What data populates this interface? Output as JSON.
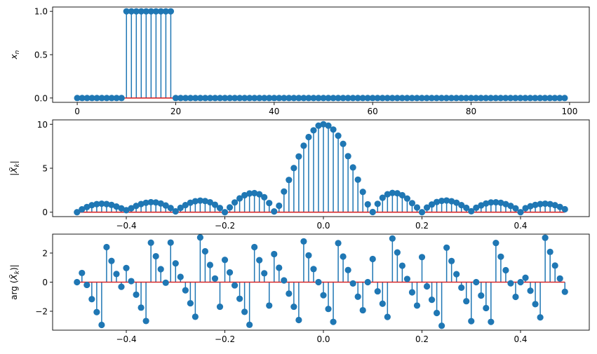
{
  "chart_data": [
    {
      "type": "stem",
      "ylabel": "x_n",
      "xlim": [
        -5,
        104
      ],
      "ylim": [
        -0.05,
        1.05
      ],
      "xticks": [
        0,
        20,
        40,
        60,
        80,
        100
      ],
      "xtick_labels": [
        "0",
        "20",
        "40",
        "60",
        "80",
        "100"
      ],
      "yticks": [
        0,
        0.5,
        1
      ],
      "ytick_labels": [
        "0.0",
        "0.5",
        "1.0"
      ],
      "x": [
        0,
        1,
        2,
        3,
        4,
        5,
        6,
        7,
        8,
        9,
        10,
        11,
        12,
        13,
        14,
        15,
        16,
        17,
        18,
        19,
        20,
        21,
        22,
        23,
        24,
        25,
        26,
        27,
        28,
        29,
        30,
        31,
        32,
        33,
        34,
        35,
        36,
        37,
        38,
        39,
        40,
        41,
        42,
        43,
        44,
        45,
        46,
        47,
        48,
        49,
        50,
        51,
        52,
        53,
        54,
        55,
        56,
        57,
        58,
        59,
        60,
        61,
        62,
        63,
        64,
        65,
        66,
        67,
        68,
        69,
        70,
        71,
        72,
        73,
        74,
        75,
        76,
        77,
        78,
        79,
        80,
        81,
        82,
        83,
        84,
        85,
        86,
        87,
        88,
        89,
        90,
        91,
        92,
        93,
        94,
        95,
        96,
        97,
        98,
        99
      ],
      "y": [
        0,
        0,
        0,
        0,
        0,
        0,
        0,
        0,
        0,
        0,
        1,
        1,
        1,
        1,
        1,
        1,
        1,
        1,
        1,
        1,
        0,
        0,
        0,
        0,
        0,
        0,
        0,
        0,
        0,
        0,
        0,
        0,
        0,
        0,
        0,
        0,
        0,
        0,
        0,
        0,
        0,
        0,
        0,
        0,
        0,
        0,
        0,
        0,
        0,
        0,
        0,
        0,
        0,
        0,
        0,
        0,
        0,
        0,
        0,
        0,
        0,
        0,
        0,
        0,
        0,
        0,
        0,
        0,
        0,
        0,
        0,
        0,
        0,
        0,
        0,
        0,
        0,
        0,
        0,
        0,
        0,
        0,
        0,
        0,
        0,
        0,
        0,
        0,
        0,
        0,
        0,
        0,
        0,
        0,
        0,
        0,
        0,
        0,
        0,
        0
      ]
    },
    {
      "type": "stem",
      "ylabel": "|X̃_k|",
      "xlim": [
        -0.5495,
        0.5395
      ],
      "ylim": [
        -0.5,
        10.5
      ],
      "xticks": [
        -0.4,
        -0.2,
        0,
        0.2,
        0.4
      ],
      "xtick_labels": [
        "−0.4",
        "−0.2",
        "0.0",
        "0.2",
        "0.4"
      ],
      "yticks": [
        0,
        5,
        10
      ],
      "ytick_labels": [
        "0",
        "5",
        "10"
      ],
      "x": [
        -0.5,
        -0.49,
        -0.48,
        -0.47,
        -0.46,
        -0.45,
        -0.44,
        -0.43,
        -0.42,
        -0.41,
        -0.4,
        -0.39,
        -0.38,
        -0.37,
        -0.36,
        -0.35,
        -0.34,
        -0.33,
        -0.32,
        -0.31,
        -0.3,
        -0.29,
        -0.28,
        -0.27,
        -0.26,
        -0.25,
        -0.24,
        -0.23,
        -0.22,
        -0.21,
        -0.2,
        -0.19,
        -0.18,
        -0.17,
        -0.16,
        -0.15,
        -0.14,
        -0.13,
        -0.12,
        -0.11,
        -0.1,
        -0.09,
        -0.08,
        -0.07,
        -0.06,
        -0.05,
        -0.04,
        -0.03,
        -0.02,
        -0.01,
        0.0,
        0.01,
        0.02,
        0.03,
        0.04,
        0.05,
        0.06,
        0.07,
        0.08,
        0.09,
        0.1,
        0.11,
        0.12,
        0.13,
        0.14,
        0.15,
        0.16,
        0.17,
        0.18,
        0.19,
        0.2,
        0.21,
        0.22,
        0.23,
        0.24,
        0.25,
        0.26,
        0.27,
        0.28,
        0.29,
        0.3,
        0.31,
        0.32,
        0.33,
        0.34,
        0.35,
        0.36,
        0.37,
        0.38,
        0.39,
        0.4,
        0.41,
        0.42,
        0.43,
        0.44,
        0.45,
        0.46,
        0.47,
        0.48,
        0.49
      ],
      "y": [
        0.0,
        0.33,
        0.59,
        0.8,
        0.92,
        0.97,
        0.93,
        0.83,
        0.65,
        0.44,
        0.23,
        0.45,
        0.72,
        0.93,
        1.07,
        1.14,
        1.11,
        0.99,
        0.77,
        0.48,
        0.1,
        0.5,
        0.81,
        1.08,
        1.25,
        1.32,
        1.27,
        1.13,
        0.85,
        0.48,
        0.0,
        0.55,
        1.11,
        1.57,
        1.93,
        2.13,
        2.17,
        2.04,
        1.7,
        1.04,
        0.09,
        0.74,
        2.35,
        3.67,
        5.02,
        6.34,
        7.56,
        8.55,
        9.31,
        9.84,
        10.0,
        9.84,
        9.4,
        8.7,
        7.77,
        6.37,
        5.09,
        3.7,
        2.31,
        0.9,
        0.02,
        0.95,
        1.64,
        2.04,
        2.19,
        2.15,
        1.93,
        1.55,
        1.03,
        0.54,
        0.0,
        0.53,
        0.88,
        1.16,
        1.29,
        1.33,
        1.25,
        1.08,
        0.81,
        0.5,
        0.11,
        0.51,
        0.78,
        0.99,
        1.11,
        1.13,
        1.07,
        0.92,
        0.72,
        0.44,
        0.0,
        0.46,
        0.68,
        0.83,
        0.93,
        0.97,
        0.92,
        0.8,
        0.6,
        0.34
      ]
    },
    {
      "type": "stem",
      "ylabel": "arg(X̃_k)",
      "xlim": [
        -0.5495,
        0.5395
      ],
      "ylim": [
        -3.3,
        3.3
      ],
      "xticks": [
        -0.4,
        -0.2,
        0,
        0.2,
        0.4
      ],
      "xtick_labels": [
        "−0.4",
        "−0.2",
        "0.0",
        "0.2",
        "0.4"
      ],
      "yticks": [
        -2,
        0,
        2
      ],
      "ytick_labels": [
        "−2",
        "0",
        "2"
      ],
      "x": [
        -0.5,
        -0.49,
        -0.48,
        -0.47,
        -0.46,
        -0.45,
        -0.44,
        -0.43,
        -0.42,
        -0.41,
        -0.4,
        -0.39,
        -0.38,
        -0.37,
        -0.36,
        -0.35,
        -0.34,
        -0.33,
        -0.32,
        -0.31,
        -0.3,
        -0.29,
        -0.28,
        -0.27,
        -0.26,
        -0.25,
        -0.24,
        -0.23,
        -0.22,
        -0.21,
        -0.2,
        -0.19,
        -0.18,
        -0.17,
        -0.16,
        -0.15,
        -0.14,
        -0.13,
        -0.12,
        -0.11,
        -0.1,
        -0.09,
        -0.08,
        -0.07,
        -0.06,
        -0.05,
        -0.04,
        -0.03,
        -0.02,
        -0.01,
        0.0,
        0.01,
        0.02,
        0.03,
        0.04,
        0.05,
        0.06,
        0.07,
        0.08,
        0.09,
        0.1,
        0.11,
        0.12,
        0.13,
        0.14,
        0.15,
        0.16,
        0.17,
        0.18,
        0.19,
        0.2,
        0.21,
        0.22,
        0.23,
        0.24,
        0.25,
        0.26,
        0.27,
        0.28,
        0.29,
        0.3,
        0.31,
        0.32,
        0.33,
        0.34,
        0.35,
        0.36,
        0.37,
        0.38,
        0.39,
        0.4,
        0.41,
        0.42,
        0.43,
        0.44,
        0.45,
        0.46,
        0.47,
        0.48,
        0.49
      ],
      "y": [
        0.0,
        0.63,
        -0.19,
        -1.17,
        -2.06,
        -2.94,
        2.41,
        1.46,
        0.56,
        -0.32,
        0.97,
        0.07,
        -0.86,
        -1.75,
        -2.67,
        2.71,
        1.78,
        0.89,
        -0.04,
        2.72,
        1.29,
        0.36,
        -0.56,
        -1.45,
        -2.38,
        3.07,
        2.12,
        1.18,
        0.25,
        -1.69,
        1.53,
        0.67,
        -0.22,
        -1.14,
        -2.04,
        -2.93,
        2.41,
        1.51,
        0.61,
        -1.61,
        1.93,
        0.99,
        0.12,
        -0.79,
        -1.69,
        -2.6,
        2.8,
        1.84,
        0.9,
        0.0,
        -0.9,
        -1.84,
        -2.73,
        2.68,
        1.76,
        0.83,
        -0.09,
        -1.0,
        -1.93,
        0.0,
        1.59,
        -0.63,
        -1.48,
        -2.39,
        3.0,
        2.04,
        1.13,
        0.22,
        -0.7,
        -1.61,
        1.72,
        -0.29,
        -1.21,
        -2.12,
        -3.0,
        2.37,
        1.45,
        0.55,
        -0.38,
        -1.31,
        -2.68,
        0.0,
        -0.92,
        -1.78,
        -2.73,
        2.69,
        1.75,
        0.82,
        -0.08,
        -1.01,
        0.0,
        0.3,
        -0.59,
        -1.51,
        -2.42,
        3.05,
        2.08,
        1.14,
        0.25,
        -0.66
      ]
    }
  ]
}
